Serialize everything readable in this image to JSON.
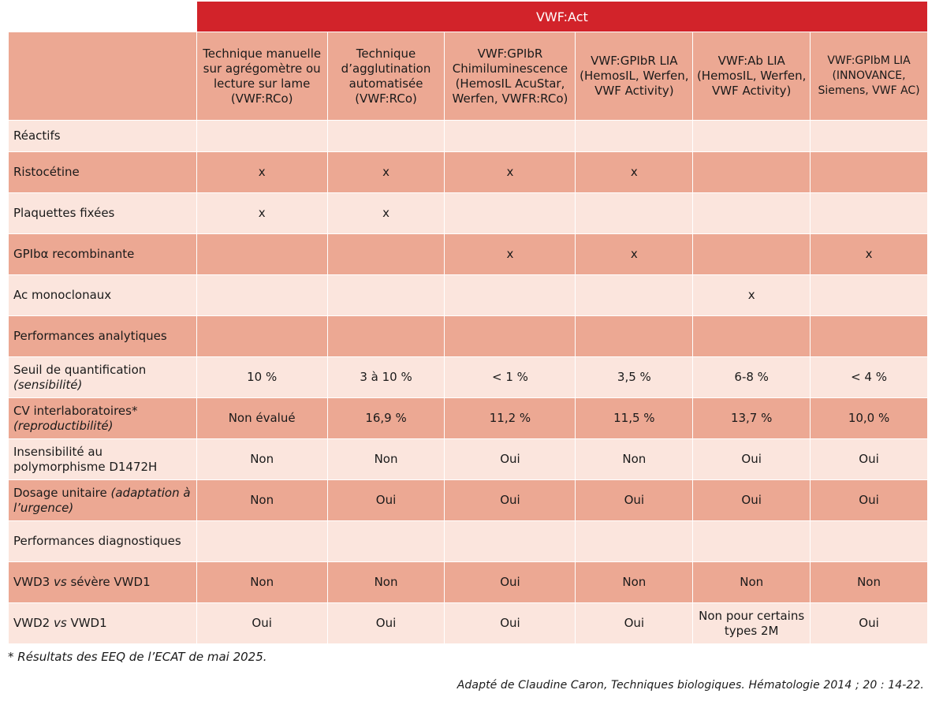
{
  "title": "VWF:Act",
  "columns": [
    "Technique manuelle sur agrégomètre ou lecture sur lame (VWF:RCo)",
    "Technique d’agglutination automatisée (VWF:RCo)",
    "VWF:GPIbR Chimiluminescence (HemosIL AcuStar, Werfen, VWFR:RCo)",
    "VWF:GPIbR LIA (HemosIL, Werfen, VWF Activity)",
    "VWF:Ab LIA (HemosIL, Werfen, VWF Activity)",
    "VWF:GPIbM LIA (INNOVANCE, Siemens, VWF AC)"
  ],
  "sections": {
    "reactifs": "Réactifs",
    "analytiques": "Performances analytiques",
    "diagnostiques": "Performances diagnostiques"
  },
  "rows": {
    "ristocetine": {
      "label": "Ristocétine",
      "cells": [
        "x",
        "x",
        "x",
        "x",
        "",
        ""
      ]
    },
    "plaquettes": {
      "label": "Plaquettes fixées",
      "cells": [
        "x",
        "x",
        "",
        "",
        "",
        ""
      ]
    },
    "gpib": {
      "label": "GPIbα recombinante",
      "cells": [
        "",
        "",
        "x",
        "x",
        "",
        "x"
      ]
    },
    "ac": {
      "label": "Ac monoclonaux",
      "cells": [
        "",
        "",
        "",
        "",
        "x",
        ""
      ]
    },
    "seuil": {
      "label": "Seuil de quantification",
      "sub": "(sensibilité)",
      "cells": [
        "10 %",
        "3 à 10 %",
        "< 1 %",
        "3,5 %",
        "6-8 %",
        "< 4 %"
      ]
    },
    "cv": {
      "label": "CV interlaboratoires*",
      "sub": "(reproductibilité)",
      "cells": [
        "Non évalué",
        "16,9 %",
        "11,2 %",
        "11,5 %",
        "13,7 %",
        "10,0 %"
      ]
    },
    "insens": {
      "label": "Insensibilité au polymorphisme D1472H",
      "cells": [
        "Non",
        "Non",
        "Oui",
        "Non",
        "Oui",
        "Oui"
      ]
    },
    "dosage": {
      "label": "Dosage unitaire ",
      "sub": "(adaptation à l’urgence)",
      "cells": [
        "Non",
        "Oui",
        "Oui",
        "Oui",
        "Oui",
        "Oui"
      ]
    },
    "vwd3": {
      "label_a": "VWD3 ",
      "vs": "vs",
      "label_b": " sévère VWD1",
      "cells": [
        "Non",
        "Non",
        "Oui",
        "Non",
        "Non",
        "Non"
      ]
    },
    "vwd2": {
      "label_a": "VWD2 ",
      "vs": "vs",
      "label_b": " VWD1",
      "cells": [
        "Oui",
        "Oui",
        "Oui",
        "Oui",
        "Non pour certains types 2M",
        "Oui"
      ]
    }
  },
  "footnote": "* Résultats des EEQ de l’ECAT de mai 2025.",
  "credit": "Adapté de Claudine Caron, Techniques biologiques. Hématologie 2014 ; 20 : 14-22."
}
